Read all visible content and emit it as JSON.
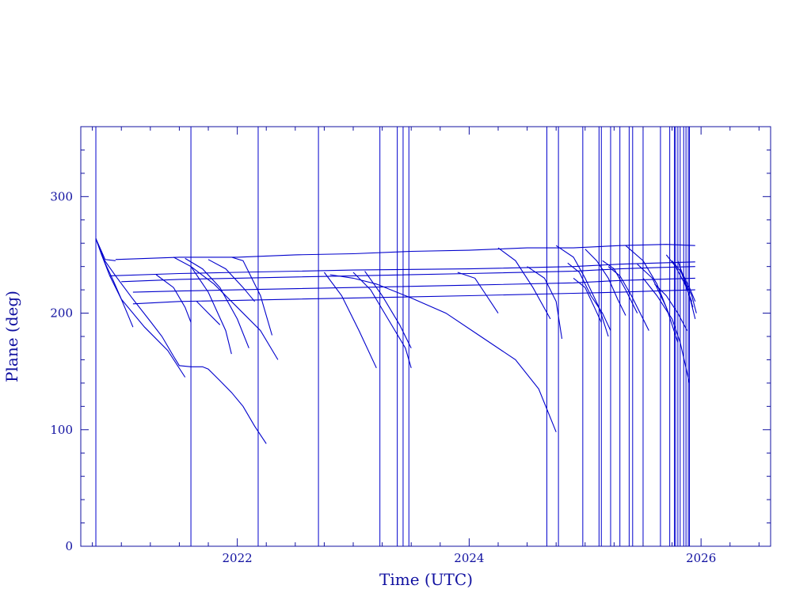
{
  "chart_data": {
    "type": "line",
    "title": "",
    "xlabel": "Time (UTC)",
    "ylabel": "Plane (deg)",
    "xlim": [
      2020.65,
      2026.6
    ],
    "ylim": [
      0,
      360
    ],
    "x_ticks": [
      {
        "value": 2022,
        "label": "2022"
      },
      {
        "value": 2024,
        "label": "2024"
      },
      {
        "value": 2026,
        "label": "2026"
      }
    ],
    "y_ticks": [
      {
        "value": 0,
        "label": "0"
      },
      {
        "value": 100,
        "label": "100"
      },
      {
        "value": 200,
        "label": "200"
      },
      {
        "value": 300,
        "label": "300"
      }
    ],
    "x_minor_step": 0.25,
    "y_minor_step": 20,
    "grid": false,
    "line_color": "#0000cc",
    "frame_color": "#1010a0",
    "launch_events": [
      2020.78,
      2021.6,
      2022.18,
      2022.7,
      2023.23,
      2023.38,
      2023.43,
      2023.48,
      2024.67,
      2024.77,
      2024.98,
      2025.12,
      2025.14,
      2025.22,
      2025.3,
      2025.38,
      2025.41,
      2025.5,
      2025.65,
      2025.73,
      2025.77,
      2025.78,
      2025.8,
      2025.82,
      2025.85,
      2025.87,
      2025.89,
      2025.9
    ],
    "series": [
      {
        "x": [
          2020.78,
          2020.85,
          2020.95,
          2021.1,
          2021.25,
          2021.35,
          2021.45,
          2021.5,
          2021.6,
          2021.7,
          2021.75,
          2021.85,
          2021.95,
          2022.05,
          2022.15,
          2022.25
        ],
        "y": [
          264,
          246,
          232,
          212,
          193,
          180,
          163,
          155,
          154,
          154,
          152,
          142,
          132,
          120,
          103,
          88
        ]
      },
      {
        "x": [
          2020.78,
          2020.86,
          2020.93,
          2021.0,
          2021.05,
          2021.1
        ],
        "y": [
          264,
          243,
          228,
          212,
          200,
          188
        ]
      },
      {
        "x": [
          2020.78,
          2020.83,
          2020.9,
          2021.0,
          2021.2,
          2021.4,
          2021.55
        ],
        "y": [
          264,
          250,
          232,
          212,
          188,
          168,
          145
        ]
      },
      {
        "x": [
          2020.78,
          2020.86,
          2020.95
        ],
        "y": [
          264,
          246,
          245
        ]
      },
      {
        "x": [
          2020.95,
          2021.5,
          2022.0,
          2022.5,
          2023.0,
          2023.5,
          2024.0,
          2024.5,
          2024.9,
          2025.3,
          2025.7,
          2025.95
        ],
        "y": [
          246,
          248,
          248,
          250,
          251,
          253,
          254,
          256,
          256,
          258,
          259,
          258
        ]
      },
      {
        "x": [
          2020.9,
          2021.5,
          2022.0,
          2023.0,
          2024.0,
          2024.9,
          2025.3,
          2025.6,
          2025.95
        ],
        "y": [
          232,
          234,
          235,
          237,
          238,
          240,
          242,
          243,
          244
        ]
      },
      {
        "x": [
          2021.0,
          2021.5,
          2022.0,
          2023.0,
          2024.0,
          2024.9,
          2025.3,
          2025.6,
          2025.95
        ],
        "y": [
          227,
          229,
          230,
          232,
          234,
          236,
          238,
          239,
          240
        ]
      },
      {
        "x": [
          2021.1,
          2021.5,
          2022.0,
          2023.0,
          2024.0,
          2024.9,
          2025.3,
          2025.6,
          2025.95
        ],
        "y": [
          218,
          219,
          220,
          222,
          224,
          226,
          228,
          229,
          230
        ]
      },
      {
        "x": [
          2021.1,
          2021.5,
          2022.0,
          2023.0,
          2024.0,
          2024.9,
          2025.3,
          2025.6,
          2025.95
        ],
        "y": [
          208,
          210,
          211,
          213,
          215,
          217,
          218,
          219,
          220
        ]
      },
      {
        "x": [
          2021.3,
          2021.45,
          2021.55,
          2021.6
        ],
        "y": [
          233,
          222,
          205,
          192
        ]
      },
      {
        "x": [
          2021.45,
          2021.6,
          2021.75,
          2021.9,
          2021.95
        ],
        "y": [
          248,
          240,
          218,
          185,
          165
        ]
      },
      {
        "x": [
          2021.55,
          2021.7,
          2021.85,
          2022.0,
          2022.1
        ],
        "y": [
          247,
          238,
          222,
          195,
          170
        ]
      },
      {
        "x": [
          2021.75,
          2021.9,
          2022.05,
          2022.15
        ],
        "y": [
          246,
          238,
          222,
          210
        ]
      },
      {
        "x": [
          2021.95,
          2022.05,
          2022.2,
          2022.3
        ],
        "y": [
          248,
          245,
          215,
          181
        ]
      },
      {
        "x": [
          2021.6,
          2021.8,
          2022.0,
          2022.2,
          2022.35
        ],
        "y": [
          240,
          225,
          205,
          185,
          160
        ]
      },
      {
        "x": [
          2021.65,
          2021.75,
          2021.85
        ],
        "y": [
          210,
          200,
          190
        ]
      },
      {
        "x": [
          2022.75,
          2022.9,
          2023.05,
          2023.2
        ],
        "y": [
          235,
          215,
          185,
          153
        ]
      },
      {
        "x": [
          2023.0,
          2023.15,
          2023.3,
          2023.45,
          2023.5
        ],
        "y": [
          235,
          220,
          195,
          170,
          153
        ]
      },
      {
        "x": [
          2023.1,
          2023.25,
          2023.4,
          2023.5
        ],
        "y": [
          236,
          215,
          190,
          170
        ]
      },
      {
        "x": [
          2022.8,
          2023.0,
          2023.2,
          2023.5,
          2023.8,
          2024.1,
          2024.4,
          2024.6,
          2024.75
        ],
        "y": [
          233,
          230,
          225,
          213,
          200,
          180,
          160,
          135,
          98
        ]
      },
      {
        "x": [
          2023.9,
          2024.05,
          2024.15,
          2024.25
        ],
        "y": [
          235,
          230,
          215,
          200
        ]
      },
      {
        "x": [
          2024.25,
          2024.4,
          2024.55,
          2024.7
        ],
        "y": [
          256,
          245,
          222,
          195
        ]
      },
      {
        "x": [
          2024.5,
          2024.65,
          2024.75,
          2024.8
        ],
        "y": [
          240,
          230,
          210,
          178
        ]
      },
      {
        "x": [
          2024.75,
          2024.9,
          2025.0,
          2025.12,
          2025.2
        ],
        "y": [
          258,
          248,
          230,
          205,
          180
        ]
      },
      {
        "x": [
          2024.85,
          2024.95,
          2025.05,
          2025.15,
          2025.22
        ],
        "y": [
          243,
          235,
          215,
          200,
          185
        ]
      },
      {
        "x": [
          2024.9,
          2025.0,
          2025.08,
          2025.14
        ],
        "y": [
          230,
          222,
          205,
          192
        ]
      },
      {
        "x": [
          2025.0,
          2025.1,
          2025.2,
          2025.28,
          2025.35
        ],
        "y": [
          255,
          245,
          230,
          212,
          198
        ]
      },
      {
        "x": [
          2025.15,
          2025.25,
          2025.35,
          2025.45
        ],
        "y": [
          245,
          238,
          220,
          200
        ]
      },
      {
        "x": [
          2025.2,
          2025.3,
          2025.4,
          2025.5,
          2025.55
        ],
        "y": [
          240,
          232,
          215,
          195,
          185
        ]
      },
      {
        "x": [
          2025.35,
          2025.5,
          2025.62,
          2025.72
        ],
        "y": [
          258,
          245,
          225,
          200
        ]
      },
      {
        "x": [
          2025.45,
          2025.58,
          2025.7,
          2025.8
        ],
        "y": [
          242,
          230,
          205,
          175
        ]
      },
      {
        "x": [
          2025.5,
          2025.62,
          2025.75,
          2025.82,
          2025.9
        ],
        "y": [
          230,
          215,
          195,
          175,
          140
        ]
      },
      {
        "x": [
          2025.6,
          2025.7,
          2025.8,
          2025.88
        ],
        "y": [
          225,
          215,
          200,
          185
        ]
      },
      {
        "x": [
          2025.7,
          2025.78,
          2025.86,
          2025.92
        ],
        "y": [
          250,
          240,
          225,
          210
        ]
      },
      {
        "x": [
          2025.75,
          2025.83,
          2025.9,
          2025.95
        ],
        "y": [
          245,
          235,
          215,
          195
        ]
      },
      {
        "x": [
          2025.8,
          2025.87,
          2025.93
        ],
        "y": [
          245,
          225,
          205
        ]
      },
      {
        "x": [
          2025.82,
          2025.9,
          2025.95
        ],
        "y": [
          238,
          222,
          210
        ]
      },
      {
        "x": [
          2025.85,
          2025.92,
          2025.96
        ],
        "y": [
          230,
          215,
          200
        ]
      }
    ]
  }
}
